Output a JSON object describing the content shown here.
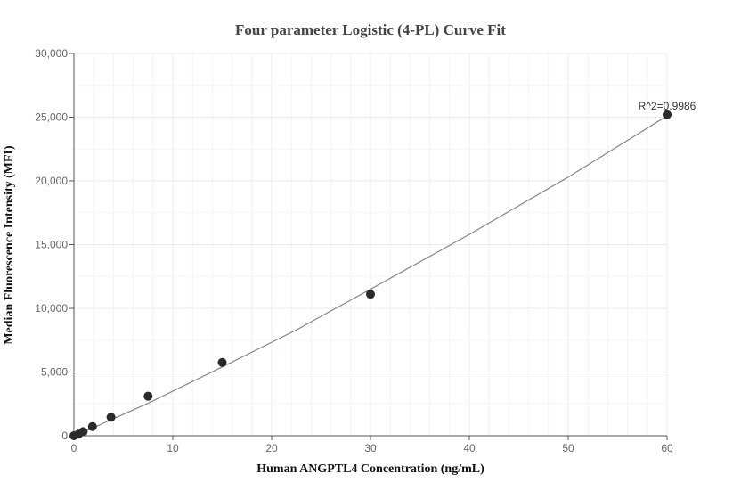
{
  "chart_data": {
    "type": "scatter",
    "title": "Four parameter Logistic (4-PL) Curve Fit",
    "xlabel": "Human ANGPTL4 Concentration (ng/mL)",
    "ylabel": "Median Fluorescence Intensity (MFI)",
    "xlim": [
      0,
      60
    ],
    "ylim": [
      0,
      30000
    ],
    "xticks": [
      "0",
      "10",
      "20",
      "30",
      "40",
      "50",
      "60"
    ],
    "yticks": [
      "0",
      "5,000",
      "10,000",
      "15,000",
      "20,000",
      "25,000",
      "30,000"
    ],
    "grid": true,
    "points": {
      "x": [
        0,
        0.469,
        0.938,
        1.875,
        3.75,
        7.5,
        15,
        30,
        60
      ],
      "y": [
        0,
        120,
        320,
        720,
        1450,
        3100,
        5750,
        11100,
        25200
      ]
    },
    "fit_curve": {
      "x": [
        0,
        0.469,
        0.938,
        1.875,
        3.75,
        7.5,
        15,
        22.5,
        30,
        40,
        50,
        60
      ],
      "y": [
        0,
        120,
        280,
        600,
        1250,
        2550,
        5400,
        8300,
        11500,
        15800,
        20300,
        25100
      ]
    },
    "annotation": "R^2=0.9986",
    "colors": {
      "points": "#2b2b2b",
      "curve": "#888888",
      "grid": "#e6ebf5"
    }
  }
}
